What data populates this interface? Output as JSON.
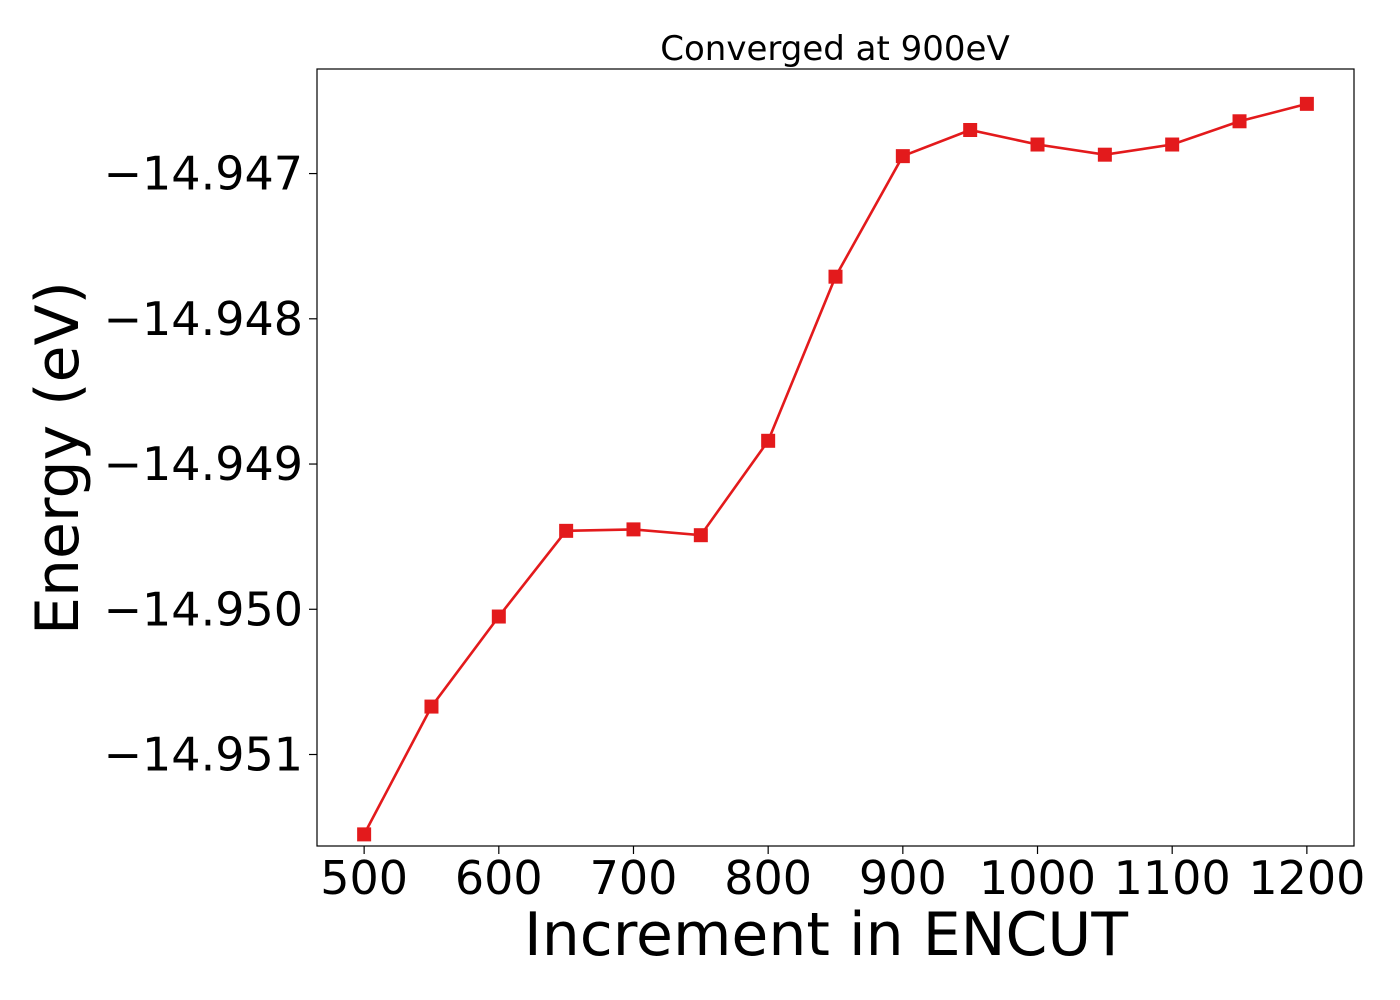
{
  "chart_data": {
    "type": "line",
    "title": "Converged at 900eV",
    "xlabel": "Increment in ENCUT",
    "ylabel": "Energy (eV)",
    "x": [
      500,
      550,
      600,
      650,
      700,
      750,
      800,
      850,
      900,
      950,
      1000,
      1050,
      1100,
      1150,
      1200
    ],
    "series": [
      {
        "values": [
          -14.95155,
          -14.95067,
          -14.95005,
          -14.94946,
          -14.94945,
          -14.94949,
          -14.94884,
          -14.94771,
          -14.94688,
          -14.9467,
          -14.9468,
          -14.94687,
          -14.9468,
          -14.94664,
          -14.94652
        ],
        "color": "#e31a1c",
        "marker": "square"
      }
    ],
    "xlim": [
      465,
      1235
    ],
    "ylim": [
      -14.95163,
      -14.94628
    ],
    "xticks": [
      500,
      600,
      700,
      800,
      900,
      1000,
      1100,
      1200
    ],
    "xtick_labels": [
      "500",
      "600",
      "700",
      "800",
      "900",
      "1000",
      "1100",
      "1200"
    ],
    "yticks": [
      -14.951,
      -14.95,
      -14.949,
      -14.948,
      -14.947
    ],
    "ytick_labels": [
      "−14.951",
      "−14.950",
      "−14.949",
      "−14.948",
      "−14.947"
    ],
    "grid": false,
    "legend": "none"
  }
}
